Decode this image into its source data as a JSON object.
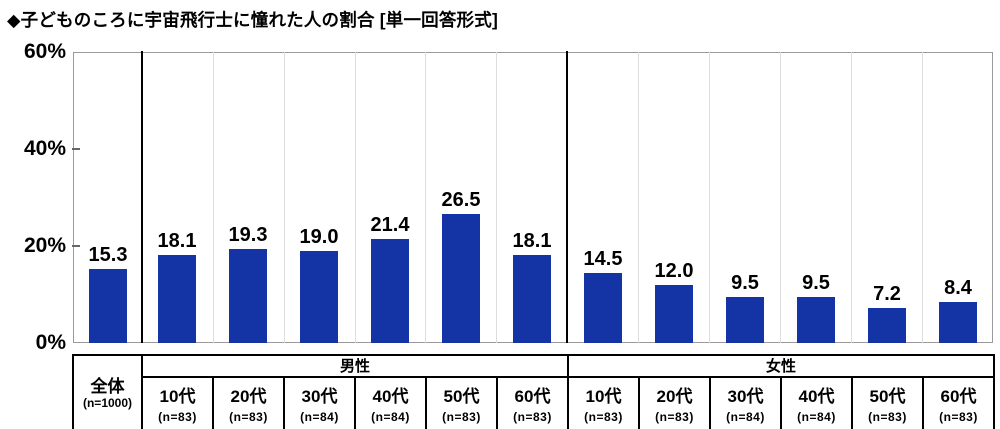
{
  "title": "◆子どものころに宇宙飛行士に憧れた人の割合 [単一回答形式]",
  "chart_data": {
    "type": "bar",
    "title": "子どものころに宇宙飛行士に憧れた人の割合",
    "answer_format": "単一回答形式",
    "unit": "%",
    "ylim": [
      0,
      60
    ],
    "grid": "off",
    "bar_color": "#1434a5",
    "yticks": [
      {
        "label": "60%",
        "value": 60
      },
      {
        "label": "40%",
        "value": 40
      },
      {
        "label": "20%",
        "value": 20
      },
      {
        "label": "0%",
        "value": 0
      }
    ],
    "groups": [
      {
        "label": "全体",
        "n_label": "(n=1000)",
        "columns": [
          {
            "label": "全体",
            "n_label": "(n=1000)",
            "value": 15.3
          }
        ]
      },
      {
        "label": "男性",
        "columns": [
          {
            "label": "10代",
            "n_label": "(n=83)",
            "value": 18.1
          },
          {
            "label": "20代",
            "n_label": "(n=83)",
            "value": 19.3
          },
          {
            "label": "30代",
            "n_label": "(n=84)",
            "value": 19.0
          },
          {
            "label": "40代",
            "n_label": "(n=84)",
            "value": 21.4
          },
          {
            "label": "50代",
            "n_label": "(n=83)",
            "value": 26.5
          },
          {
            "label": "60代",
            "n_label": "(n=83)",
            "value": 18.1
          }
        ]
      },
      {
        "label": "女性",
        "columns": [
          {
            "label": "10代",
            "n_label": "(n=83)",
            "value": 14.5
          },
          {
            "label": "20代",
            "n_label": "(n=83)",
            "value": 12.0
          },
          {
            "label": "30代",
            "n_label": "(n=84)",
            "value": 9.5
          },
          {
            "label": "40代",
            "n_label": "(n=84)",
            "value": 9.5
          },
          {
            "label": "50代",
            "n_label": "(n=83)",
            "value": 7.2
          },
          {
            "label": "60代",
            "n_label": "(n=83)",
            "value": 8.4
          }
        ]
      }
    ]
  }
}
